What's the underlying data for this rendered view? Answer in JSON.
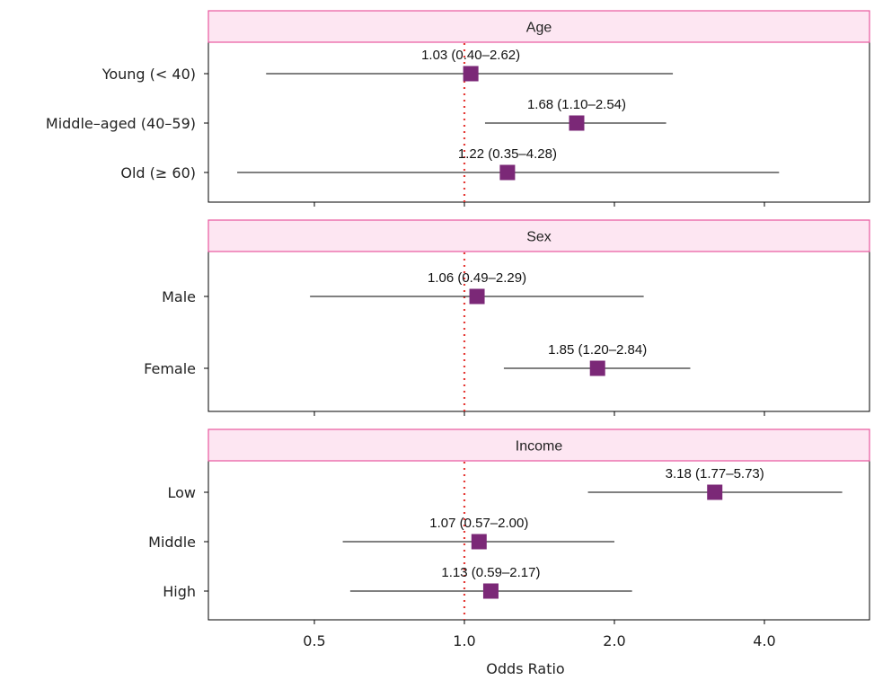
{
  "chart_data": {
    "type": "forest",
    "xlabel": "Odds Ratio",
    "xscale": "log",
    "xlim": [
      0.35,
      5.6
    ],
    "xticks": [
      0.5,
      1.0,
      2.0,
      4.0
    ],
    "xtick_labels": [
      "0.5",
      "1.0",
      "2.0",
      "4.0"
    ],
    "reference_line": 1.0,
    "colors": {
      "marker": "#7b2877",
      "reference": "#e53935",
      "strip_fill": "#fde6f2",
      "strip_border": "#e8579e"
    },
    "panels": [
      {
        "title": "Age",
        "rows": [
          {
            "label": "Young (< 40)",
            "or": 1.03,
            "lo": 0.4,
            "hi": 2.62,
            "text": "1.03 (0.40–2.62)"
          },
          {
            "label": "Middle–aged (40–59)",
            "or": 1.68,
            "lo": 1.1,
            "hi": 2.54,
            "text": "1.68 (1.10–2.54)"
          },
          {
            "label": "Old (≥ 60)",
            "or": 1.22,
            "lo": 0.35,
            "hi": 4.28,
            "text": "1.22 (0.35–4.28)"
          }
        ]
      },
      {
        "title": "Sex",
        "rows": [
          {
            "label": "Male",
            "or": 1.06,
            "lo": 0.49,
            "hi": 2.29,
            "text": "1.06 (0.49–2.29)"
          },
          {
            "label": "Female",
            "or": 1.85,
            "lo": 1.2,
            "hi": 2.84,
            "text": "1.85 (1.20–2.84)"
          }
        ]
      },
      {
        "title": "Income",
        "rows": [
          {
            "label": "Low",
            "or": 3.18,
            "lo": 1.77,
            "hi": 5.73,
            "text": "3.18 (1.77–5.73)"
          },
          {
            "label": "Middle",
            "or": 1.07,
            "lo": 0.57,
            "hi": 2.0,
            "text": "1.07 (0.57–2.00)"
          },
          {
            "label": "High",
            "or": 1.13,
            "lo": 0.59,
            "hi": 2.17,
            "text": "1.13 (0.59–2.17)"
          }
        ]
      }
    ]
  }
}
